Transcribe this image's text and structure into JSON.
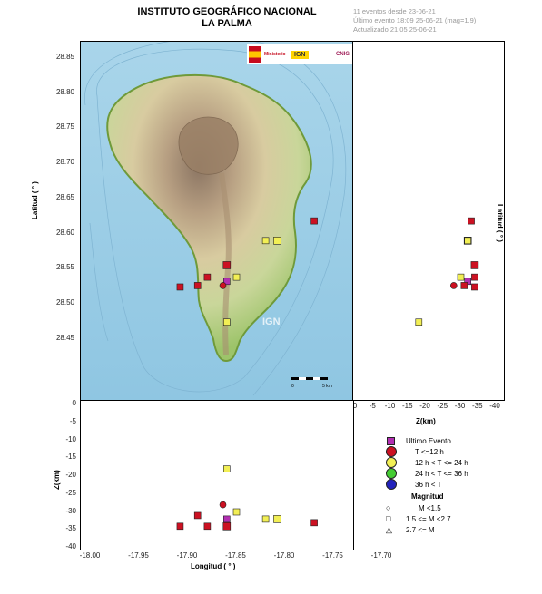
{
  "header": {
    "title_line1": "INSTITUTO GEOGRÁFICO NACIONAL",
    "title_line2": "LA PALMA",
    "info_line1": "11 eventos desde 23-06-21",
    "info_line2": "Último evento 18:09 25-06-21   (mag=1.9)",
    "info_line3": "Actualizado   21:05  25-06-21"
  },
  "map": {
    "ylabel": "Latitud ( ° )",
    "lat_ticks": [
      "28.85",
      "28.80",
      "28.75",
      "28.70",
      "28.65",
      "28.60",
      "28.55",
      "28.50",
      "28.45"
    ],
    "scale_label_0": "0",
    "scale_label_5": "5 km",
    "watermark": "IGN",
    "logo_text_1": "Ministerio",
    "logo_text_2": "IGN",
    "logo_text_3": "CNIG"
  },
  "right_panel": {
    "xlabel": "Z(km)",
    "ylabel": "Latitud ( ° )",
    "z_ticks": [
      "0",
      "-5",
      "-10",
      "-15",
      "-20",
      "-25",
      "-30",
      "-35",
      "-40"
    ]
  },
  "bottom_panel": {
    "xlabel": "Longitud ( ° )",
    "ylabel": "Z(km)",
    "z_ticks": [
      "0",
      "-5",
      "-10",
      "-15",
      "-20",
      "-25",
      "-30",
      "-35",
      "-40"
    ],
    "lon_ticks": [
      "-18.00",
      "-17.95",
      "-17.90",
      "-17.85",
      "-17.80",
      "-17.75",
      "-17.70"
    ]
  },
  "legend": {
    "items": [
      {
        "label": "Ultimo Evento",
        "shape": "square",
        "color": "#b22fb2"
      },
      {
        "label": "T <=12 h",
        "shape": "circle",
        "color": "#cc1122"
      },
      {
        "label": "12 h  < T <= 24 h",
        "shape": "circle",
        "color": "#f2ef55"
      },
      {
        "label": "24 h  < T <= 36 h",
        "shape": "circle",
        "color": "#44cc33"
      },
      {
        "label": "36 h  < T",
        "shape": "circle",
        "color": "#2222bb"
      }
    ],
    "mag_title": "Magnitud",
    "mag_items": [
      {
        "label": "M <1.5",
        "shape": "circle"
      },
      {
        "label": "1.5 <= M <2.7",
        "shape": "square"
      },
      {
        "label": "2.7 <= M",
        "shape": "triangle"
      }
    ]
  },
  "events": [
    {
      "lon": -17.77,
      "lat": 28.618,
      "z": -33,
      "cls": "red",
      "shape": "square",
      "size": 7
    },
    {
      "lon": -17.808,
      "lat": 28.59,
      "z": -32,
      "cls": "yellow",
      "shape": "square",
      "size": 8
    },
    {
      "lon": -17.82,
      "lat": 28.59,
      "z": -32,
      "cls": "yellow",
      "shape": "square",
      "size": 7
    },
    {
      "lon": -17.86,
      "lat": 28.555,
      "z": -34,
      "cls": "red",
      "shape": "square",
      "size": 8
    },
    {
      "lon": -17.88,
      "lat": 28.538,
      "z": -34,
      "cls": "red",
      "shape": "square",
      "size": 7
    },
    {
      "lon": -17.85,
      "lat": 28.538,
      "z": -30,
      "cls": "yellow",
      "shape": "square",
      "size": 7
    },
    {
      "lon": -17.86,
      "lat": 28.532,
      "z": -32,
      "cls": "magenta",
      "shape": "square",
      "size": 7
    },
    {
      "lon": -17.864,
      "lat": 28.526,
      "z": -28,
      "cls": "red",
      "shape": "circle",
      "size": 7
    },
    {
      "lon": -17.89,
      "lat": 28.526,
      "z": -31,
      "cls": "red",
      "shape": "square",
      "size": 7
    },
    {
      "lon": -17.908,
      "lat": 28.524,
      "z": -34,
      "cls": "red",
      "shape": "square",
      "size": 7
    },
    {
      "lon": -17.86,
      "lat": 28.474,
      "z": -18,
      "cls": "yellow",
      "shape": "square",
      "size": 7
    }
  ],
  "colors": {
    "red": "#cc1122",
    "yellow": "#f2ef55",
    "magenta": "#b22fb2",
    "sea": "#9fcfe6",
    "land_low": "#a9c97c",
    "land_high": "#c9b79a"
  }
}
